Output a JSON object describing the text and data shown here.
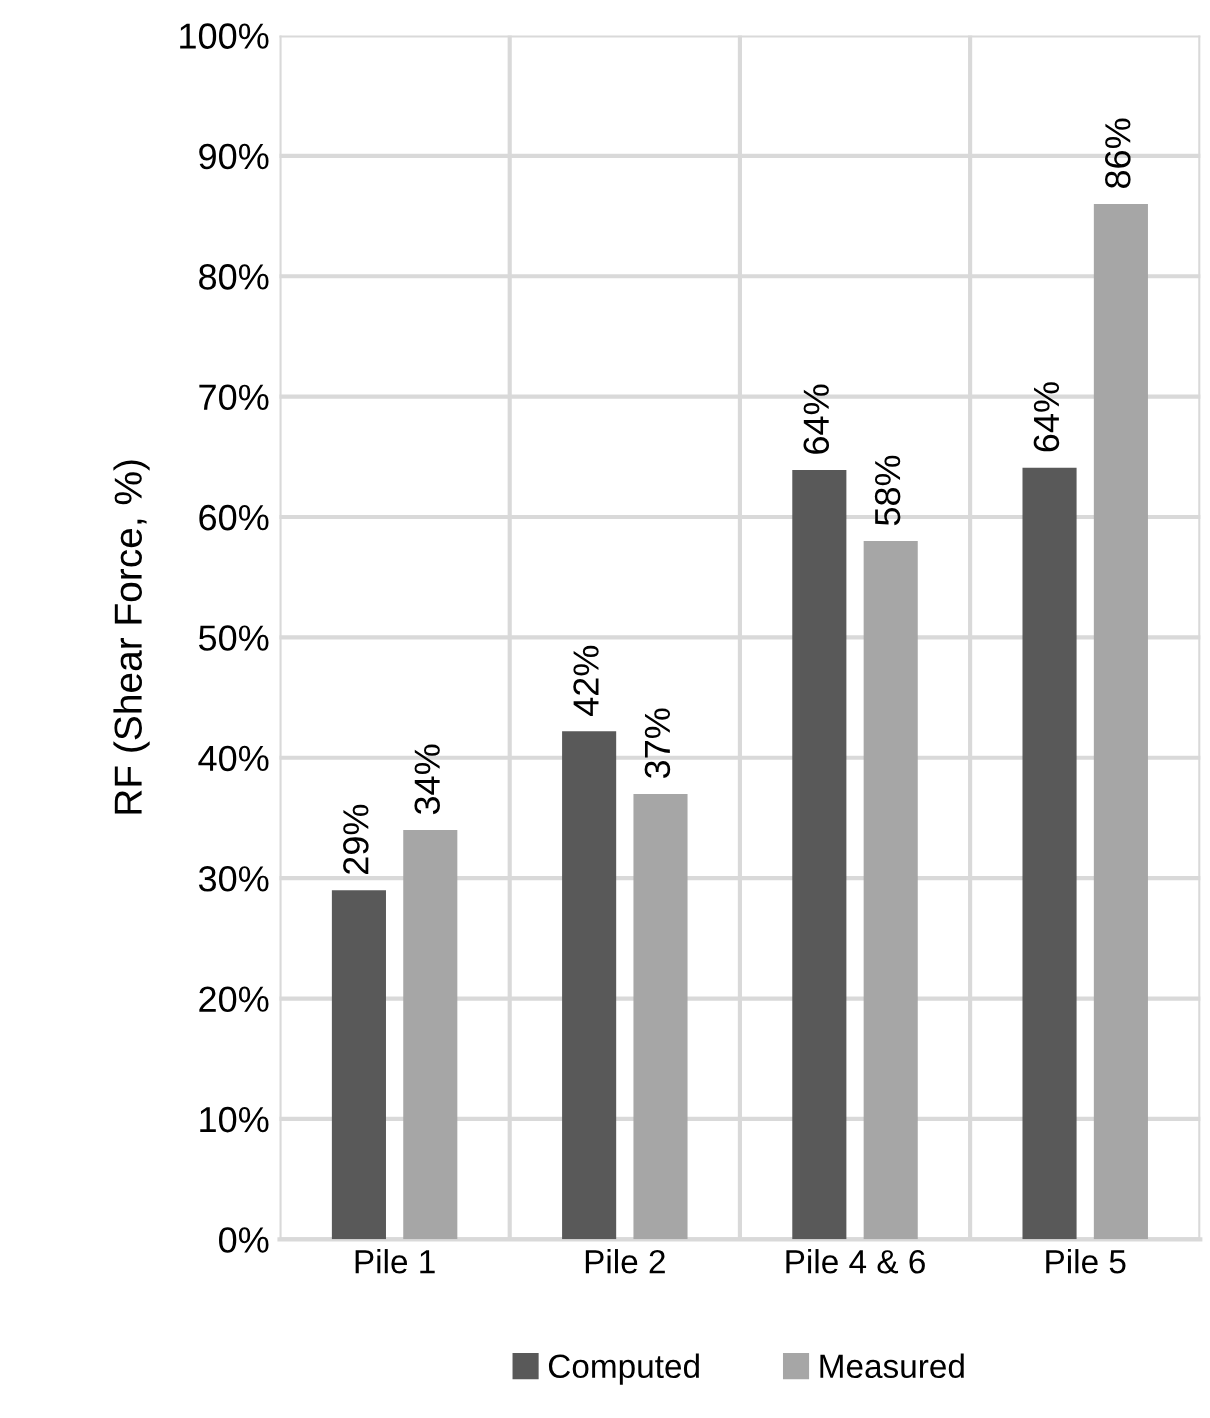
{
  "chart_data": {
    "type": "bar",
    "ylabel": "RF (Shear Force, %)",
    "categories": [
      "Pile 1",
      "Pile 2",
      "Pile 4 & 6",
      "Pile 5"
    ],
    "series": [
      {
        "name": "Computed",
        "color": "#595959",
        "values": [
          29,
          42.2,
          63.9,
          64.1
        ],
        "value_labels": [
          "29%",
          "42%",
          "64%",
          "64%"
        ]
      },
      {
        "name": "Measured",
        "color": "#a6a6a6",
        "values": [
          34,
          37,
          58,
          86
        ],
        "value_labels": [
          "34%",
          "37%",
          "58%",
          "86%"
        ]
      }
    ],
    "ylim": [
      0,
      100
    ],
    "yticks": [
      {
        "value": 0,
        "label": "0%"
      },
      {
        "value": 10,
        "label": "10%"
      },
      {
        "value": 20,
        "label": "20%"
      },
      {
        "value": 30,
        "label": "30%"
      },
      {
        "value": 40,
        "label": "40%"
      },
      {
        "value": 50,
        "label": "50%"
      },
      {
        "value": 60,
        "label": "60%"
      },
      {
        "value": 70,
        "label": "70%"
      },
      {
        "value": 80,
        "label": "80%"
      },
      {
        "value": 90,
        "label": "90%"
      },
      {
        "value": 100,
        "label": "100%"
      }
    ],
    "grid": true,
    "legend": "bottom"
  }
}
